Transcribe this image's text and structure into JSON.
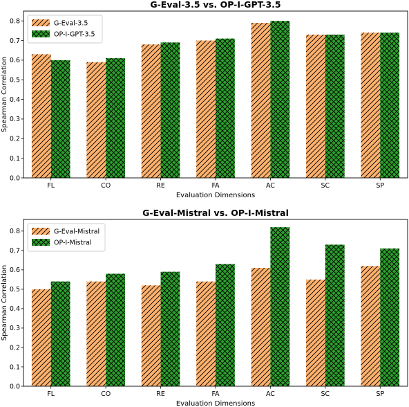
{
  "chart_data": [
    {
      "type": "bar",
      "title": "G-Eval-3.5 vs. OP-I-GPT-3.5",
      "xlabel": "Evaluation Dimensions",
      "ylabel": "Spearman Correlation",
      "categories": [
        "FL",
        "CO",
        "RE",
        "FA",
        "AC",
        "SC",
        "SP"
      ],
      "ylim": [
        0,
        0.85
      ],
      "yticks": [
        "0.0",
        "0.1",
        "0.2",
        "0.3",
        "0.4",
        "0.5",
        "0.6",
        "0.7",
        "0.8"
      ],
      "legend_position": "upper-left",
      "series": [
        {
          "name": "G-Eval-3.5",
          "color": "#ffb26e",
          "hatch": "diagonal",
          "values": [
            0.63,
            0.59,
            0.68,
            0.7,
            0.79,
            0.73,
            0.74
          ]
        },
        {
          "name": "OP-I-GPT-3.5",
          "color": "#2ca02c",
          "hatch": "crosshatch",
          "values": [
            0.6,
            0.61,
            0.69,
            0.71,
            0.8,
            0.73,
            0.74
          ]
        }
      ]
    },
    {
      "type": "bar",
      "title": "G-Eval-Mistral vs. OP-I-Mistral",
      "xlabel": "Evaluation Dimensions",
      "ylabel": "Spearman Correlation",
      "categories": [
        "FL",
        "CO",
        "RE",
        "FA",
        "AC",
        "SC",
        "SP"
      ],
      "ylim": [
        0,
        0.86
      ],
      "yticks": [
        "0.0",
        "0.1",
        "0.2",
        "0.3",
        "0.4",
        "0.5",
        "0.6",
        "0.7",
        "0.8"
      ],
      "legend_position": "upper-left",
      "series": [
        {
          "name": "G-Eval-Mistral",
          "color": "#ffb26e",
          "hatch": "diagonal",
          "values": [
            0.5,
            0.54,
            0.52,
            0.54,
            0.61,
            0.55,
            0.62
          ]
        },
        {
          "name": "OP-I-Mistral",
          "color": "#2ca02c",
          "hatch": "crosshatch",
          "values": [
            0.54,
            0.58,
            0.59,
            0.63,
            0.82,
            0.73,
            0.71
          ]
        }
      ]
    }
  ]
}
